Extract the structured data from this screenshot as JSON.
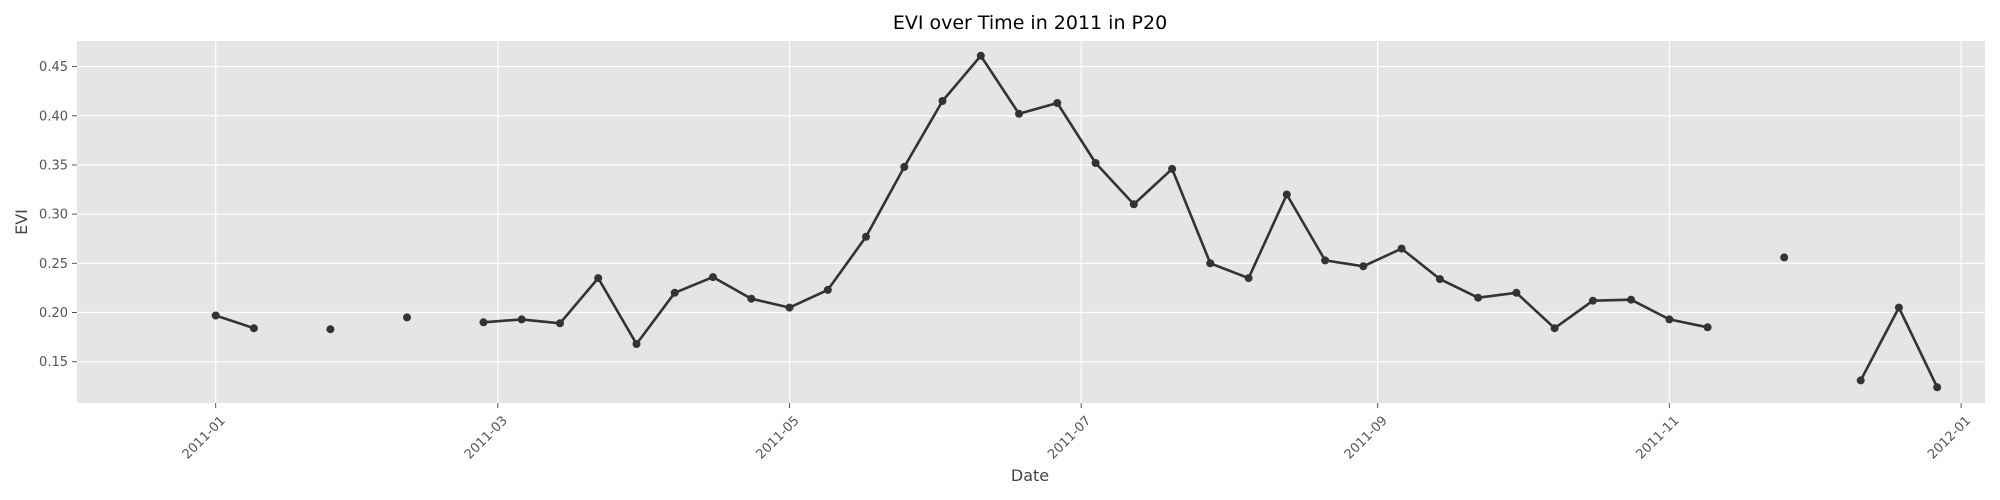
{
  "chart_data": {
    "type": "line",
    "title": "EVI over Time in 2011 in P20",
    "xlabel": "Date",
    "ylabel": "EVI",
    "xlim": [
      "2010-12-03",
      "2012-01-06"
    ],
    "ylim": [
      0.108,
      0.476
    ],
    "grid": true,
    "x_ticks": [
      "2011-01",
      "2011-03",
      "2011-05",
      "2011-07",
      "2011-09",
      "2011-11",
      "2012-01"
    ],
    "y_ticks": [
      "0.15",
      "0.20",
      "0.25",
      "0.30",
      "0.35",
      "0.40",
      "0.45"
    ],
    "series": [
      {
        "color": "#333333",
        "points": [
          {
            "x": "2011-01-01",
            "y": 0.197
          },
          {
            "x": "2011-01-09",
            "y": 0.184
          },
          {
            "x": "2011-01-25",
            "y": null
          },
          {
            "x": "2011-01-25",
            "y": 0.183
          },
          {
            "x": "2011-02-10",
            "y": null
          },
          {
            "x": "2011-02-10",
            "y": 0.195
          },
          {
            "x": "2011-02-26",
            "y": null
          },
          {
            "x": "2011-02-26",
            "y": 0.19
          },
          {
            "x": "2011-03-06",
            "y": 0.193
          },
          {
            "x": "2011-03-14",
            "y": 0.189
          },
          {
            "x": "2011-03-22",
            "y": 0.235
          },
          {
            "x": "2011-03-30",
            "y": 0.168
          },
          {
            "x": "2011-04-07",
            "y": 0.22
          },
          {
            "x": "2011-04-15",
            "y": 0.236
          },
          {
            "x": "2011-04-23",
            "y": 0.214
          },
          {
            "x": "2011-05-01",
            "y": 0.205
          },
          {
            "x": "2011-05-09",
            "y": 0.223
          },
          {
            "x": "2011-05-17",
            "y": 0.277
          },
          {
            "x": "2011-05-25",
            "y": 0.348
          },
          {
            "x": "2011-06-02",
            "y": 0.415
          },
          {
            "x": "2011-06-10",
            "y": 0.461
          },
          {
            "x": "2011-06-18",
            "y": 0.402
          },
          {
            "x": "2011-06-26",
            "y": 0.413
          },
          {
            "x": "2011-07-04",
            "y": 0.352
          },
          {
            "x": "2011-07-12",
            "y": 0.31
          },
          {
            "x": "2011-07-20",
            "y": 0.346
          },
          {
            "x": "2011-07-28",
            "y": 0.25
          },
          {
            "x": "2011-08-05",
            "y": 0.235
          },
          {
            "x": "2011-08-13",
            "y": 0.32
          },
          {
            "x": "2011-08-21",
            "y": 0.253
          },
          {
            "x": "2011-08-29",
            "y": 0.247
          },
          {
            "x": "2011-09-06",
            "y": 0.265
          },
          {
            "x": "2011-09-14",
            "y": 0.234
          },
          {
            "x": "2011-09-22",
            "y": 0.215
          },
          {
            "x": "2011-09-30",
            "y": 0.22
          },
          {
            "x": "2011-10-08",
            "y": 0.184
          },
          {
            "x": "2011-10-16",
            "y": 0.212
          },
          {
            "x": "2011-10-24",
            "y": 0.213
          },
          {
            "x": "2011-11-01",
            "y": 0.193
          },
          {
            "x": "2011-11-09",
            "y": 0.185
          },
          {
            "x": "2011-11-25",
            "y": null
          },
          {
            "x": "2011-11-25",
            "y": 0.256
          },
          {
            "x": "2011-12-11",
            "y": null
          },
          {
            "x": "2011-12-11",
            "y": 0.131
          },
          {
            "x": "2011-12-19",
            "y": 0.205
          },
          {
            "x": "2011-12-27",
            "y": 0.124
          }
        ]
      }
    ],
    "colors": {
      "plot_background": "#e5e5e5",
      "grid": "#ffffff",
      "line": "#333333"
    }
  }
}
